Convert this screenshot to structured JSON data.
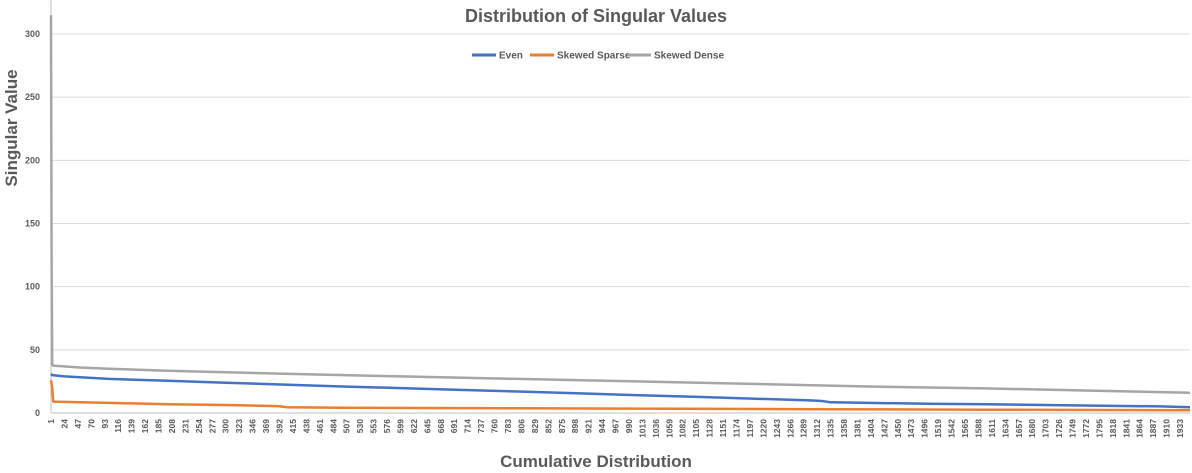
{
  "chart_data": {
    "type": "line",
    "title": "Distribution of Singular Values",
    "xlabel": "Cumulative Distribution",
    "ylabel": "Singular Value",
    "ylim": [
      0,
      300
    ],
    "xlim": [
      1,
      1950
    ],
    "y_ticks": [
      0,
      50,
      100,
      150,
      200,
      250,
      300
    ],
    "x_tick_labels": [
      "1",
      "24",
      "47",
      "70",
      "93",
      "116",
      "139",
      "162",
      "185",
      "208",
      "231",
      "254",
      "277",
      "300",
      "323",
      "346",
      "369",
      "392",
      "415",
      "438",
      "461",
      "484",
      "507",
      "530",
      "553",
      "576",
      "599",
      "622",
      "645",
      "668",
      "691",
      "714",
      "737",
      "760",
      "783",
      "806",
      "829",
      "852",
      "875",
      "898",
      "921",
      "944",
      "967",
      "990",
      "1013",
      "1036",
      "1059",
      "1082",
      "1105",
      "1128",
      "1151",
      "1174",
      "1197",
      "1220",
      "1243",
      "1266",
      "1289",
      "1312",
      "1335",
      "1358",
      "1381",
      "1404",
      "1427",
      "1450",
      "1473",
      "1496",
      "1519",
      "1542",
      "1565",
      "1588",
      "1611",
      "1634",
      "1657",
      "1680",
      "1703",
      "1726",
      "1749",
      "1772",
      "1795",
      "1818",
      "1841",
      "1864",
      "1887",
      "1910",
      "1933"
    ],
    "legend_position": "top-center",
    "series": [
      {
        "name": "Even",
        "color": "#4472c4",
        "x": [
          1,
          3,
          24,
          100,
          200,
          300,
          400,
          500,
          600,
          700,
          800,
          900,
          1000,
          1100,
          1200,
          1300,
          1320,
          1335,
          1400,
          1500,
          1600,
          1700,
          1800,
          1900,
          1950
        ],
        "y": [
          31,
          30,
          29,
          27,
          25.5,
          24,
          22.5,
          21,
          19.7,
          18.3,
          17,
          15.6,
          14.2,
          12.8,
          11.4,
          10,
          9.5,
          8.5,
          8,
          7.4,
          6.9,
          6.3,
          5.8,
          5.2,
          4.5
        ]
      },
      {
        "name": "Skewed Sparse",
        "color": "#ed7d31",
        "x": [
          1,
          3,
          5,
          50,
          100,
          200,
          300,
          390,
          405,
          500,
          700,
          1000,
          1300,
          1600,
          1950
        ],
        "y": [
          26,
          20,
          9,
          8.5,
          8,
          7,
          6.3,
          5.5,
          4.5,
          4.2,
          3.9,
          3.5,
          3,
          2.6,
          2.2
        ]
      },
      {
        "name": "Skewed Dense",
        "color": "#a5a5a5",
        "x": [
          1,
          2,
          3,
          5,
          50,
          100,
          200,
          400,
          600,
          800,
          1000,
          1200,
          1400,
          1600,
          1800,
          1950
        ],
        "y": [
          315,
          120,
          38,
          37.5,
          36,
          35,
          33.5,
          31,
          29,
          27,
          25,
          23,
          21,
          19.5,
          17.5,
          16
        ]
      }
    ]
  }
}
